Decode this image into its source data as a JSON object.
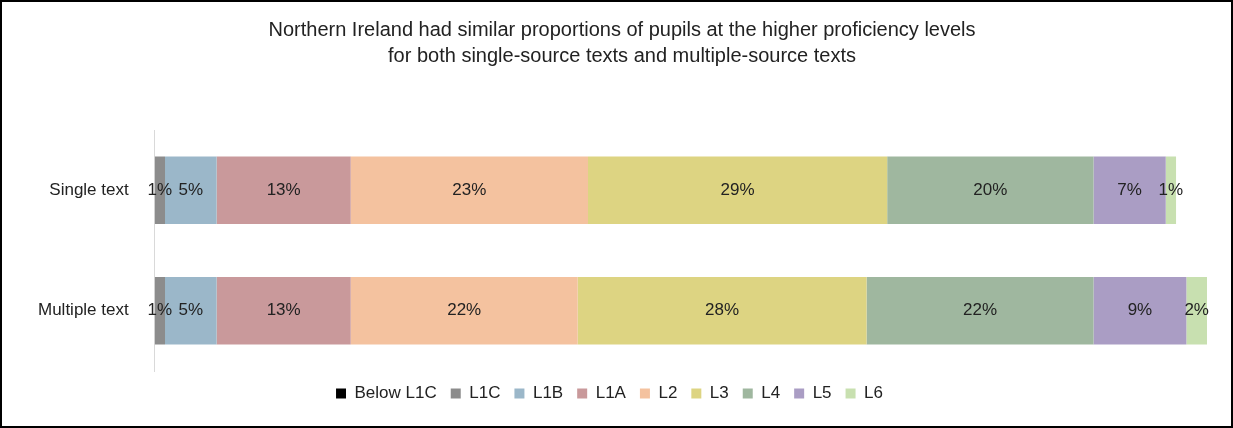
{
  "chart_data": {
    "type": "bar",
    "orientation": "horizontal",
    "stacked": true,
    "title": "Northern Ireland had similar proportions of pupils at the higher proficiency levels for both single-source texts and multiple-source texts",
    "categories": [
      "Single text",
      "Multiple text"
    ],
    "series": [
      {
        "name": "Below L1C",
        "color": "#000000",
        "values": [
          0,
          0
        ],
        "value_labels": [
          null,
          null
        ]
      },
      {
        "name": "L1C",
        "color": "#8c8c8c",
        "values": [
          1,
          1
        ],
        "value_labels": [
          "1%",
          "1%"
        ]
      },
      {
        "name": "L1B",
        "color": "#9bb7c9",
        "values": [
          5,
          5
        ],
        "value_labels": [
          "5%",
          "5%"
        ]
      },
      {
        "name": "L1A",
        "color": "#c9999b",
        "values": [
          13,
          13
        ],
        "value_labels": [
          "13%",
          "13%"
        ]
      },
      {
        "name": "L2",
        "color": "#f4c29f",
        "values": [
          23,
          22
        ],
        "value_labels": [
          "23%",
          "22%"
        ]
      },
      {
        "name": "L3",
        "color": "#ddd482",
        "values": [
          29,
          28
        ],
        "value_labels": [
          "29%",
          "28%"
        ]
      },
      {
        "name": "L4",
        "color": "#9fb79f",
        "values": [
          20,
          22
        ],
        "value_labels": [
          "20%",
          "22%"
        ]
      },
      {
        "name": "L5",
        "color": "#aa9dc4",
        "values": [
          7,
          9
        ],
        "value_labels": [
          "7%",
          "9%"
        ]
      },
      {
        "name": "L6",
        "color": "#c8e0b0",
        "values": [
          1,
          2
        ],
        "value_labels": [
          "1%",
          "2%"
        ]
      }
    ],
    "legend": "bottom"
  }
}
